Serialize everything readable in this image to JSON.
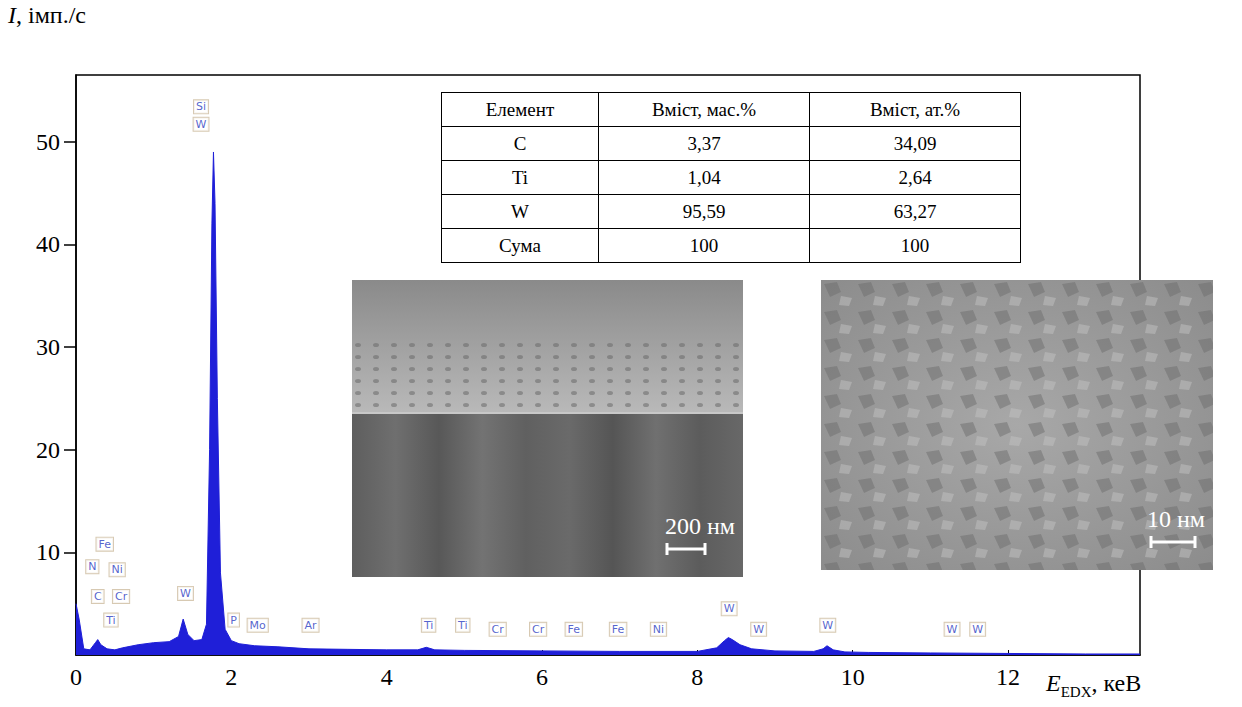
{
  "chart_data": {
    "type": "line",
    "ylabel": {
      "text": "I",
      "suffix": ", імп./с"
    },
    "xlabel": {
      "text": "E",
      "subscript": "EDX",
      "suffix": ", кеВ"
    },
    "x": [
      0,
      0.04,
      0.1,
      0.18,
      0.25,
      0.28,
      0.32,
      0.4,
      0.5,
      0.6,
      0.8,
      1.0,
      1.2,
      1.32,
      1.38,
      1.44,
      1.52,
      1.62,
      1.68,
      1.72,
      1.75,
      1.77,
      1.79,
      1.82,
      1.86,
      1.92,
      2.0,
      2.1,
      2.3,
      2.6,
      3.0,
      3.5,
      4.0,
      4.4,
      4.51,
      4.62,
      5.0,
      6.0,
      7.0,
      8.0,
      8.25,
      8.35,
      8.4,
      8.45,
      8.55,
      8.7,
      9.0,
      9.5,
      9.62,
      9.67,
      9.75,
      9.9,
      10.2,
      11.0,
      12.0,
      13.0,
      13.7
    ],
    "values": [
      5,
      3.5,
      0.6,
      0.5,
      1.2,
      1.5,
      1.0,
      0.6,
      0.5,
      0.7,
      1.0,
      1.2,
      1.3,
      1.8,
      3.5,
      2.0,
      1.4,
      1.5,
      3.0,
      20,
      42,
      49,
      44,
      25,
      8,
      2.5,
      1.4,
      1.1,
      0.9,
      0.8,
      0.6,
      0.55,
      0.5,
      0.5,
      0.75,
      0.5,
      0.45,
      0.4,
      0.35,
      0.35,
      0.7,
      1.4,
      1.7,
      1.5,
      1.0,
      0.6,
      0.4,
      0.35,
      0.6,
      0.9,
      0.5,
      0.3,
      0.25,
      0.2,
      0.15,
      0.1,
      0.1
    ],
    "color": "#1f1fd8",
    "xlim": [
      0,
      13.7
    ],
    "xticks": [
      0,
      2,
      4,
      6,
      8,
      10,
      12
    ],
    "ylim": [
      0,
      56.5
    ],
    "yticks": [
      10,
      20,
      30,
      40,
      50
    ],
    "grid": false,
    "annotations": [
      {
        "text": "Si",
        "x": 1.61,
        "y": 53.4
      },
      {
        "text": "W",
        "x": 1.61,
        "y": 51.7
      },
      {
        "text": "Fe",
        "x": 0.37,
        "y": 10.8
      },
      {
        "text": "N",
        "x": 0.21,
        "y": 8.6
      },
      {
        "text": "Ni",
        "x": 0.53,
        "y": 8.3
      },
      {
        "text": "C",
        "x": 0.28,
        "y": 5.7
      },
      {
        "text": "Cr",
        "x": 0.58,
        "y": 5.7
      },
      {
        "text": "Ti",
        "x": 0.45,
        "y": 3.4
      },
      {
        "text": "W",
        "x": 1.41,
        "y": 6.0
      },
      {
        "text": "P",
        "x": 2.03,
        "y": 3.4
      },
      {
        "text": "Mo",
        "x": 2.34,
        "y": 2.9
      },
      {
        "text": "Ar",
        "x": 3.02,
        "y": 2.9
      },
      {
        "text": "Ti",
        "x": 4.54,
        "y": 2.9
      },
      {
        "text": "Ti",
        "x": 4.98,
        "y": 2.9
      },
      {
        "text": "Cr",
        "x": 5.43,
        "y": 2.5
      },
      {
        "text": "Cr",
        "x": 5.95,
        "y": 2.5
      },
      {
        "text": "Fe",
        "x": 6.41,
        "y": 2.5
      },
      {
        "text": "Fe",
        "x": 6.98,
        "y": 2.5
      },
      {
        "text": "Ni",
        "x": 7.5,
        "y": 2.5
      },
      {
        "text": "W",
        "x": 8.41,
        "y": 4.5
      },
      {
        "text": "W",
        "x": 8.79,
        "y": 2.5
      },
      {
        "text": "W",
        "x": 9.68,
        "y": 2.9
      },
      {
        "text": "W",
        "x": 11.28,
        "y": 2.5
      },
      {
        "text": "W",
        "x": 11.61,
        "y": 2.5
      }
    ]
  },
  "table": {
    "header": [
      "Елемент",
      "Вміст, мас.%",
      "Вміст, ат.%"
    ],
    "rows": [
      [
        "C",
        "3,37",
        "34,09"
      ],
      [
        "Ti",
        "1,04",
        "2,64"
      ],
      [
        "W",
        "95,59",
        "63,27"
      ],
      [
        "Сума",
        "100",
        "100"
      ]
    ]
  },
  "images": [
    {
      "scale_bar": "200 нм"
    },
    {
      "scale_bar": "10 нм"
    }
  ]
}
